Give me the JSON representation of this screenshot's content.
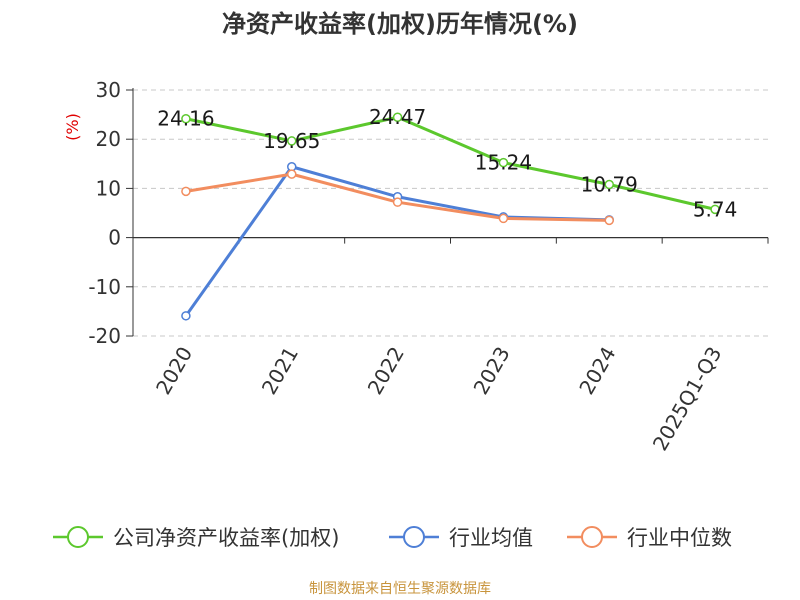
{
  "chart_data": {
    "type": "line",
    "title": "净资产收益率(加权)历年情况(%)",
    "unit_label": "(%)",
    "categories": [
      "2020",
      "2021",
      "2022",
      "2023",
      "2024",
      "2025Q1-Q3"
    ],
    "ylim": [
      -20,
      30
    ],
    "yticks": [
      30,
      20,
      10,
      0,
      -10,
      -20
    ],
    "grid": true,
    "legend_position": "bottom",
    "series": [
      {
        "name": "公司净资产收益率(加权)",
        "color": "#5cc82d",
        "values": [
          24.16,
          19.65,
          24.47,
          15.24,
          10.79,
          5.74
        ],
        "labels": [
          "24.16",
          "19.65",
          "24.47",
          "15.24",
          "10.79",
          "5.74"
        ]
      },
      {
        "name": "行业均值",
        "color": "#4e7fd6",
        "values": [
          -15.9,
          14.4,
          8.3,
          4.2,
          3.6,
          null
        ]
      },
      {
        "name": "行业中位数",
        "color": "#f28d5f",
        "values": [
          9.4,
          12.9,
          7.2,
          3.9,
          3.5,
          null
        ]
      }
    ]
  },
  "footer": {
    "source": "制图数据来自恒生聚源数据库"
  }
}
